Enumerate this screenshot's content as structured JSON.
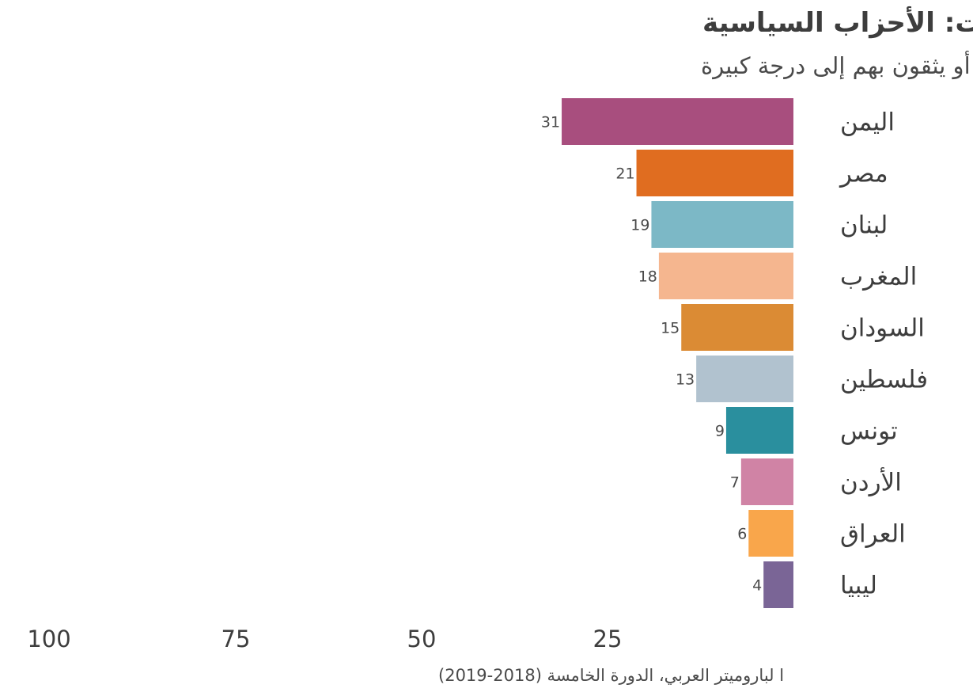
{
  "chart_data": {
    "type": "bar",
    "orientation": "horizontal",
    "direction": "right-to-left",
    "title": "الثقة بالمؤسسات: الأحزاب السياسية",
    "subtitle": "% من يثقون بهم أو يثقون بهم  إلى درجة كبيرة",
    "source": "ا لباروميتر العربي، الدورة الخامسة (2018-2019)",
    "categories": [
      "اليمن",
      "مصر",
      "لبنان",
      "المغرب",
      "السودان",
      "فلسطين",
      "تونس",
      "الأردن",
      "العراق",
      "ليبيا"
    ],
    "values": [
      31,
      21,
      19,
      18,
      15,
      13,
      9,
      7,
      6,
      4
    ],
    "value_labels": [
      "31",
      "21",
      "19",
      "18",
      "15",
      "13",
      "9",
      "7",
      "6",
      "4"
    ],
    "colors": [
      "#a84e7e",
      "#e06d20",
      "#7cb8c6",
      "#f5b68f",
      "#db8b34",
      "#b1c2cf",
      "#2a8f9e",
      "#d083a5",
      "#f9a64b",
      "#7a6596"
    ],
    "xlim": [
      0,
      100
    ],
    "x_ticks": [
      100,
      75,
      50,
      25
    ],
    "x_tick_labels": [
      "100",
      "75",
      "50",
      "25"
    ],
    "grid": false,
    "legend": "none"
  }
}
